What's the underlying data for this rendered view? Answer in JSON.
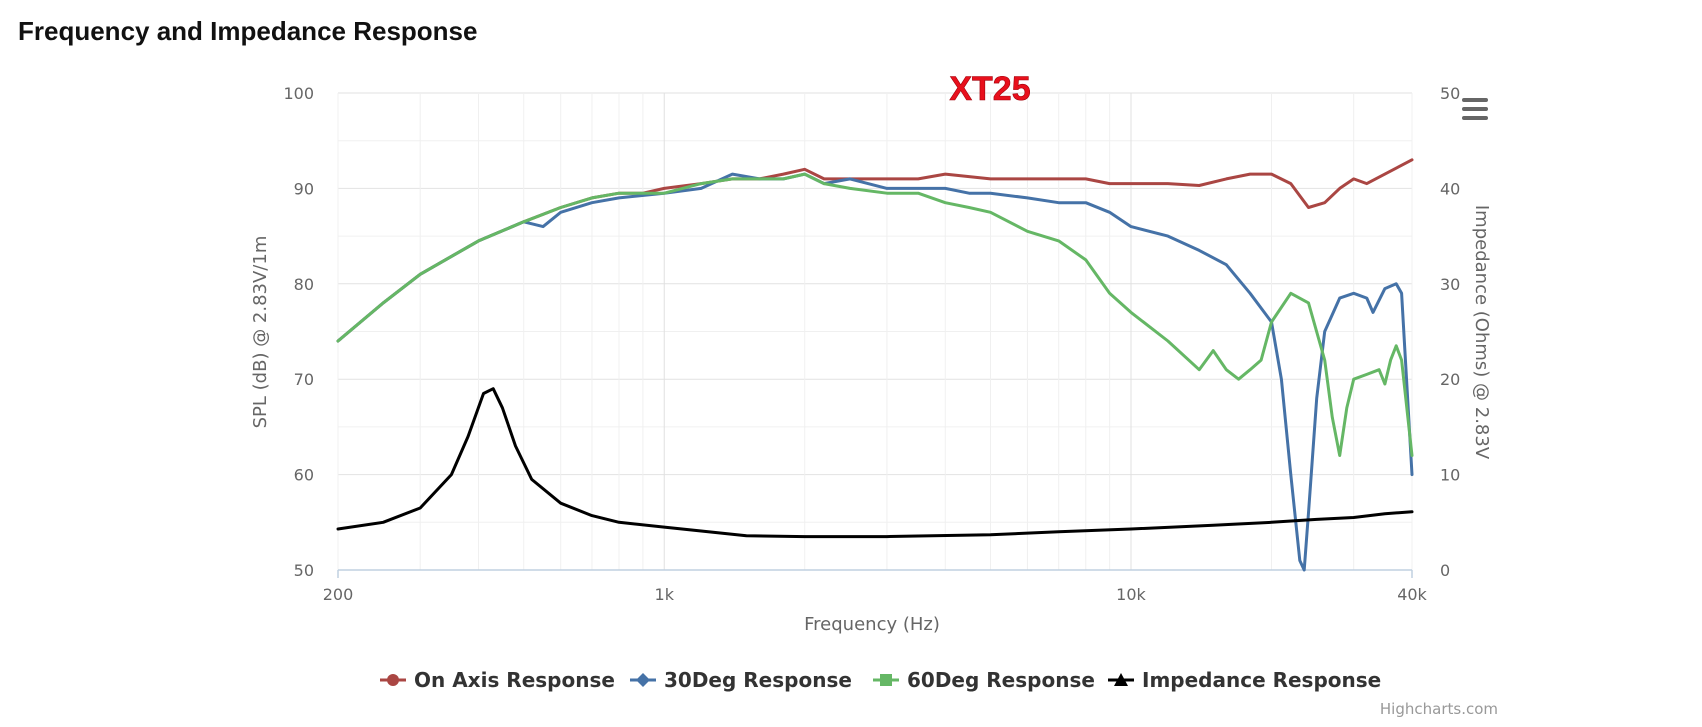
{
  "page": {
    "title": "Frequency and Impedance Response"
  },
  "model_label": "XT25",
  "credits": "Highcharts.com",
  "menu_icon": "hamburger-menu-icon",
  "chart_data": {
    "type": "line",
    "x_scale": "log",
    "xlabel": "Frequency (Hz)",
    "ylabel_left": "SPL (dB) @ 2.83V/1m",
    "ylabel_right": "Impedance (Ohms) @ 2.83V",
    "xlim": [
      200,
      40000
    ],
    "ylim_left": [
      50,
      100
    ],
    "ylim_right": [
      0,
      50
    ],
    "x_ticks": [
      {
        "value": 200,
        "label": "200"
      },
      {
        "value": 1000,
        "label": "1k"
      },
      {
        "value": 10000,
        "label": "10k"
      },
      {
        "value": 40000,
        "label": "40k"
      }
    ],
    "y_ticks_left": [
      "50",
      "60",
      "70",
      "80",
      "90",
      "100"
    ],
    "y_ticks_right": [
      "0",
      "10",
      "20",
      "30",
      "40",
      "50"
    ],
    "grid": true,
    "legend_position": "bottom-center",
    "series": [
      {
        "name": "On Axis Response",
        "axis": "left",
        "color": "#aa4643",
        "marker": "circle",
        "points": [
          [
            200,
            74
          ],
          [
            250,
            78
          ],
          [
            300,
            81
          ],
          [
            400,
            84.5
          ],
          [
            500,
            86.5
          ],
          [
            600,
            88
          ],
          [
            700,
            89
          ],
          [
            800,
            89.5
          ],
          [
            900,
            89.5
          ],
          [
            1000,
            90
          ],
          [
            1200,
            90.5
          ],
          [
            1400,
            91
          ],
          [
            1600,
            91
          ],
          [
            1800,
            91.5
          ],
          [
            2000,
            92
          ],
          [
            2200,
            91
          ],
          [
            2500,
            91
          ],
          [
            3000,
            91
          ],
          [
            3500,
            91
          ],
          [
            4000,
            91.5
          ],
          [
            5000,
            91
          ],
          [
            6000,
            91
          ],
          [
            7000,
            91
          ],
          [
            8000,
            91
          ],
          [
            9000,
            90.5
          ],
          [
            10000,
            90.5
          ],
          [
            12000,
            90.5
          ],
          [
            14000,
            90.3
          ],
          [
            16000,
            91
          ],
          [
            18000,
            91.5
          ],
          [
            20000,
            91.5
          ],
          [
            22000,
            90.5
          ],
          [
            24000,
            88
          ],
          [
            26000,
            88.5
          ],
          [
            28000,
            90
          ],
          [
            30000,
            91
          ],
          [
            32000,
            90.5
          ],
          [
            35000,
            91.5
          ],
          [
            40000,
            93
          ]
        ]
      },
      {
        "name": "30Deg Response",
        "axis": "left",
        "color": "#4572a7",
        "marker": "diamond",
        "points": [
          [
            200,
            74
          ],
          [
            250,
            78
          ],
          [
            300,
            81
          ],
          [
            400,
            84.5
          ],
          [
            500,
            86.5
          ],
          [
            550,
            86
          ],
          [
            600,
            87.5
          ],
          [
            700,
            88.5
          ],
          [
            800,
            89
          ],
          [
            1000,
            89.5
          ],
          [
            1200,
            90
          ],
          [
            1400,
            91.5
          ],
          [
            1600,
            91
          ],
          [
            1800,
            91
          ],
          [
            2000,
            91.5
          ],
          [
            2200,
            90.5
          ],
          [
            2500,
            91
          ],
          [
            3000,
            90
          ],
          [
            3500,
            90
          ],
          [
            4000,
            90
          ],
          [
            4500,
            89.5
          ],
          [
            5000,
            89.5
          ],
          [
            6000,
            89
          ],
          [
            7000,
            88.5
          ],
          [
            8000,
            88.5
          ],
          [
            9000,
            87.5
          ],
          [
            10000,
            86
          ],
          [
            12000,
            85
          ],
          [
            14000,
            83.5
          ],
          [
            16000,
            82
          ],
          [
            18000,
            79
          ],
          [
            20000,
            76
          ],
          [
            21000,
            70
          ],
          [
            22000,
            60
          ],
          [
            23000,
            51
          ],
          [
            23500,
            50
          ],
          [
            24000,
            56
          ],
          [
            25000,
            68
          ],
          [
            26000,
            75
          ],
          [
            28000,
            78.5
          ],
          [
            30000,
            79
          ],
          [
            32000,
            78.5
          ],
          [
            33000,
            77
          ],
          [
            35000,
            79.5
          ],
          [
            37000,
            80
          ],
          [
            38000,
            79
          ],
          [
            40000,
            60
          ]
        ]
      },
      {
        "name": "60Deg Response",
        "axis": "left",
        "color": "#65b765",
        "marker": "square",
        "points": [
          [
            200,
            74
          ],
          [
            250,
            78
          ],
          [
            300,
            81
          ],
          [
            400,
            84.5
          ],
          [
            500,
            86.5
          ],
          [
            600,
            88
          ],
          [
            700,
            89
          ],
          [
            800,
            89.5
          ],
          [
            1000,
            89.5
          ],
          [
            1200,
            90.5
          ],
          [
            1400,
            91
          ],
          [
            1600,
            91
          ],
          [
            1800,
            91
          ],
          [
            2000,
            91.5
          ],
          [
            2200,
            90.5
          ],
          [
            2500,
            90
          ],
          [
            3000,
            89.5
          ],
          [
            3500,
            89.5
          ],
          [
            4000,
            88.5
          ],
          [
            4500,
            88
          ],
          [
            5000,
            87.5
          ],
          [
            6000,
            85.5
          ],
          [
            7000,
            84.5
          ],
          [
            8000,
            82.5
          ],
          [
            9000,
            79
          ],
          [
            10000,
            77
          ],
          [
            12000,
            74
          ],
          [
            14000,
            71
          ],
          [
            15000,
            73
          ],
          [
            16000,
            71
          ],
          [
            17000,
            70
          ],
          [
            18000,
            71
          ],
          [
            19000,
            72
          ],
          [
            20000,
            76
          ],
          [
            22000,
            79
          ],
          [
            24000,
            78
          ],
          [
            26000,
            72
          ],
          [
            27000,
            66
          ],
          [
            28000,
            62
          ],
          [
            29000,
            67
          ],
          [
            30000,
            70
          ],
          [
            32000,
            70.5
          ],
          [
            34000,
            71
          ],
          [
            35000,
            69.5
          ],
          [
            36000,
            72
          ],
          [
            37000,
            73.5
          ],
          [
            38000,
            72
          ],
          [
            40000,
            62
          ]
        ]
      },
      {
        "name": "Impedance Response",
        "axis": "right",
        "color": "#000000",
        "marker": "triangle",
        "points": [
          [
            200,
            4.3
          ],
          [
            250,
            5
          ],
          [
            300,
            6.5
          ],
          [
            350,
            10
          ],
          [
            380,
            14
          ],
          [
            410,
            18.5
          ],
          [
            430,
            19
          ],
          [
            450,
            17
          ],
          [
            480,
            13
          ],
          [
            520,
            9.5
          ],
          [
            600,
            7
          ],
          [
            700,
            5.7
          ],
          [
            800,
            5
          ],
          [
            1000,
            4.5
          ],
          [
            1500,
            3.6
          ],
          [
            2000,
            3.5
          ],
          [
            3000,
            3.5
          ],
          [
            5000,
            3.7
          ],
          [
            7000,
            4
          ],
          [
            10000,
            4.3
          ],
          [
            15000,
            4.7
          ],
          [
            20000,
            5
          ],
          [
            25000,
            5.3
          ],
          [
            30000,
            5.5
          ],
          [
            35000,
            5.9
          ],
          [
            40000,
            6.1
          ]
        ]
      }
    ]
  }
}
